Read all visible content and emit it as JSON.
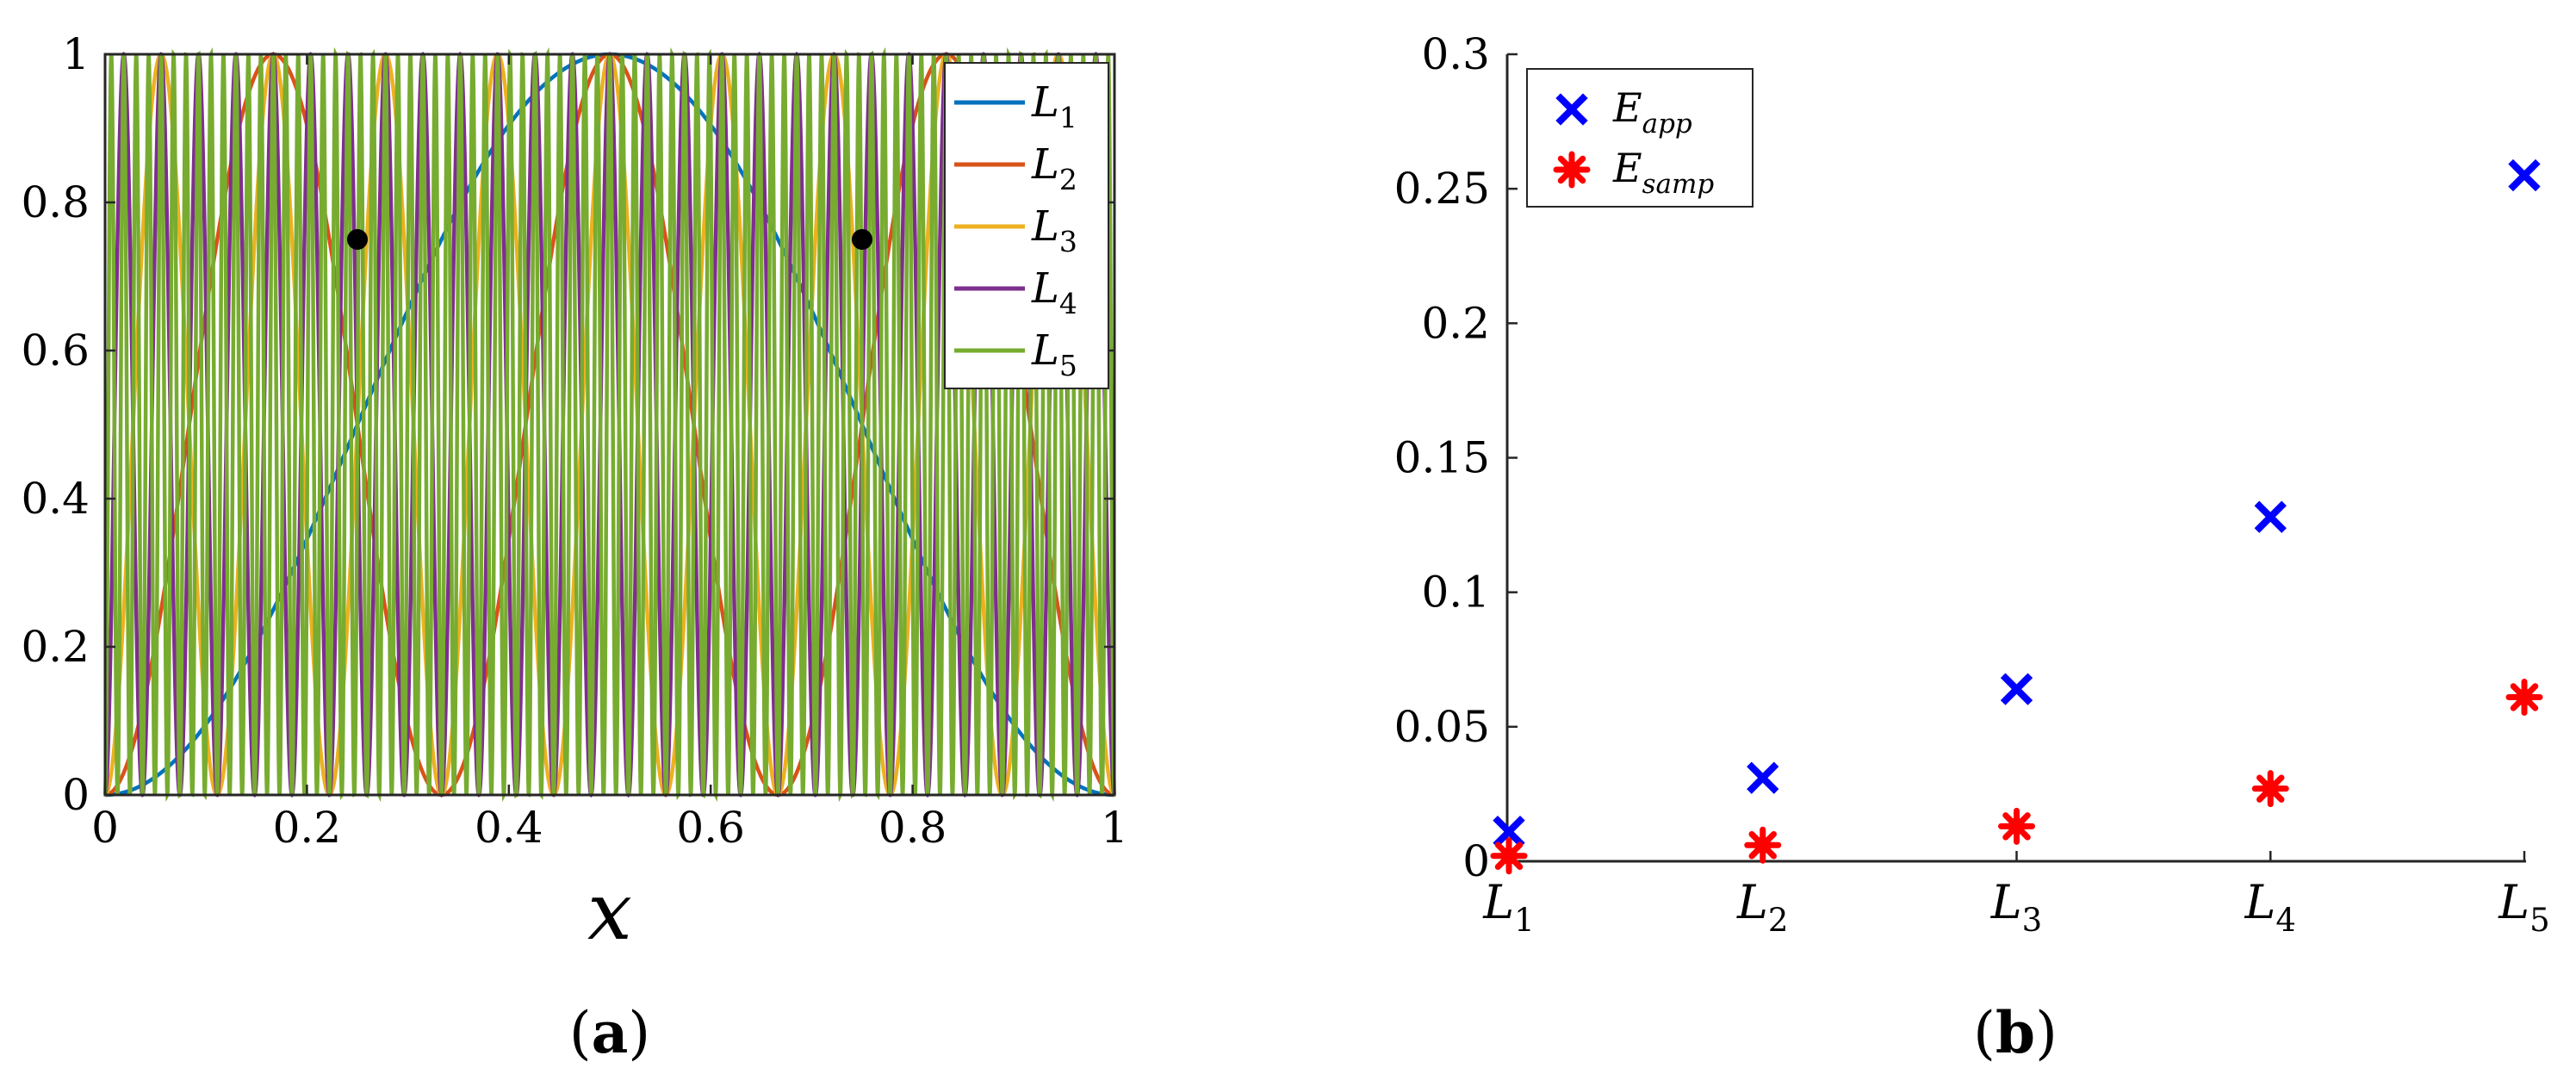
{
  "chart_data": [
    {
      "id": "a",
      "type": "line",
      "panel_label_paren_open": "(",
      "panel_label_letter": "a",
      "panel_label_paren_close": ")",
      "xlabel": "x",
      "xlim": [
        0,
        1
      ],
      "ylim": [
        0,
        1
      ],
      "xticks": [
        "0",
        "0.2",
        "0.4",
        "0.6",
        "0.8",
        "1"
      ],
      "yticks": [
        "0",
        "0.2",
        "0.4",
        "0.6",
        "0.8",
        "1"
      ],
      "grid": false,
      "legend_position": "top-right",
      "function": "sin^2(k * pi * x)",
      "series": [
        {
          "name": "L",
          "sub": "1",
          "k": 1,
          "color": "#0072BD"
        },
        {
          "name": "L",
          "sub": "2",
          "k": 3,
          "color": "#D95319"
        },
        {
          "name": "L",
          "sub": "3",
          "k": 9,
          "color": "#EDB120"
        },
        {
          "name": "L",
          "sub": "4",
          "k": 27,
          "color": "#7E2F8E"
        },
        {
          "name": "L",
          "sub": "5",
          "k": 81,
          "color": "#77AC30"
        }
      ],
      "markers": [
        {
          "x": 0.25,
          "y": 0.75,
          "color": "#000000"
        },
        {
          "x": 0.75,
          "y": 0.75,
          "color": "#000000"
        }
      ]
    },
    {
      "id": "b",
      "type": "scatter",
      "panel_label_paren_open": "(",
      "panel_label_letter": "b",
      "panel_label_paren_close": ")",
      "categories": [
        {
          "name": "L",
          "sub": "1"
        },
        {
          "name": "L",
          "sub": "2"
        },
        {
          "name": "L",
          "sub": "3"
        },
        {
          "name": "L",
          "sub": "4"
        },
        {
          "name": "L",
          "sub": "5"
        }
      ],
      "ylim": [
        0,
        0.3
      ],
      "yticks": [
        "0",
        "0.05",
        "0.1",
        "0.15",
        "0.2",
        "0.25",
        "0.3"
      ],
      "grid": false,
      "legend_position": "top-left",
      "series": [
        {
          "name": "E",
          "sub": "app",
          "marker": "x",
          "color": "#0000FF",
          "values": [
            0.011,
            0.031,
            0.064,
            0.128,
            0.255
          ]
        },
        {
          "name": "E",
          "sub": "samp",
          "marker": "*",
          "color": "#FF0000",
          "values": [
            0.002,
            0.006,
            0.013,
            0.027,
            0.061
          ]
        }
      ]
    }
  ]
}
